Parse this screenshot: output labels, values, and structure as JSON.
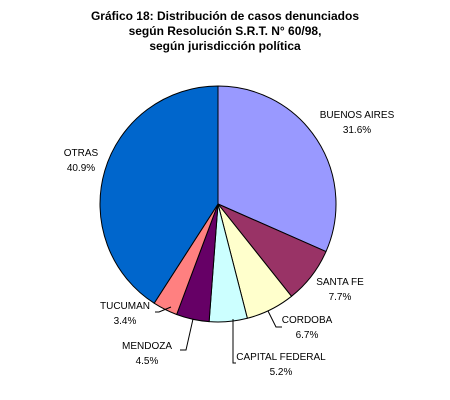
{
  "chart_data": {
    "type": "pie",
    "title_lines": [
      "Gráfico 18: Distribución de casos denunciados",
      "según Resolución S.R.T. N° 60/98,",
      "según jurisdicción política"
    ],
    "slices": [
      {
        "name": "BUENOS AIRES",
        "value": 31.6,
        "value_label": "31.6%",
        "color": "#9999ff"
      },
      {
        "name": "SANTA FE",
        "value": 7.7,
        "value_label": "7.7%",
        "color": "#993366"
      },
      {
        "name": "CORDOBA",
        "value": 6.7,
        "value_label": "6.7%",
        "color": "#ffffcc"
      },
      {
        "name": "CAPITAL FEDERAL",
        "value": 5.2,
        "value_label": "5.2%",
        "color": "#ccffff"
      },
      {
        "name": "MENDOZA",
        "value": 4.5,
        "value_label": "4.5%",
        "color": "#660066"
      },
      {
        "name": "TUCUMAN",
        "value": 3.4,
        "value_label": "3.4%",
        "color": "#ff8080"
      },
      {
        "name": "OTRAS",
        "value": 40.9,
        "value_label": "40.9%",
        "color": "#0066cc"
      }
    ],
    "start_angle_deg": 0,
    "direction": "clockwise",
    "slice_border_color": "#000000",
    "leader_line_color": "#000000"
  }
}
